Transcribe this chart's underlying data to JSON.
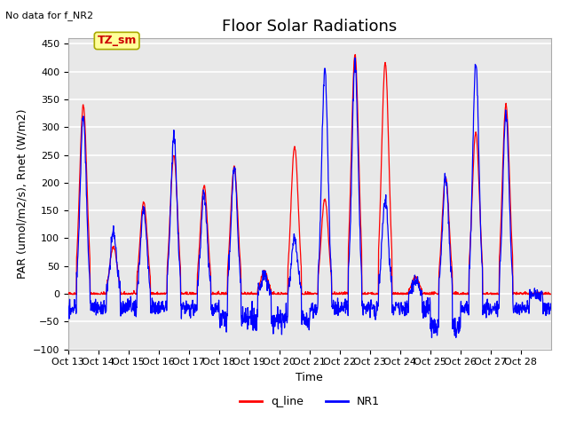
{
  "title": "Floor Solar Radiations",
  "subtitle": "No data for f_NR2",
  "xlabel": "Time",
  "ylabel": "PAR (umol/m2/s), Rnet (W/m2)",
  "ylim": [
    -100,
    460
  ],
  "yticks": [
    -100,
    -50,
    0,
    50,
    100,
    150,
    200,
    250,
    300,
    350,
    400,
    450
  ],
  "x_tick_labels": [
    "Oct 13",
    "Oct 14",
    "Oct 15",
    "Oct 16",
    "Oct 17",
    "Oct 18",
    "Oct 19",
    "Oct 20",
    "Oct 21",
    "Oct 22",
    "Oct 23",
    "Oct 24",
    "Oct 25",
    "Oct 26",
    "Oct 27",
    "Oct 28"
  ],
  "legend_labels": [
    "q_line",
    "NR1"
  ],
  "legend_colors": [
    "#ff0000",
    "#0000ff"
  ],
  "line_colors": {
    "q_line": "#ff0000",
    "NR1": "#0000ff"
  },
  "annotation_label": "TZ_sm",
  "annotation_color": "#cc0000",
  "annotation_bg": "#ffff99",
  "annotation_border": "#aaaa00",
  "plot_bg_color": "#e8e8e8",
  "grid_color": "#ffffff",
  "title_fontsize": 13,
  "axis_fontsize": 9,
  "tick_fontsize": 8,
  "n_days": 16,
  "pts_per_day": 96,
  "red_peaks": [
    340,
    85,
    165,
    250,
    195,
    230,
    40,
    265,
    170,
    430,
    415,
    30,
    210,
    290,
    340,
    0
  ],
  "blue_peaks": [
    320,
    110,
    150,
    283,
    180,
    225,
    35,
    100,
    405,
    415,
    170,
    25,
    210,
    415,
    330,
    0
  ]
}
